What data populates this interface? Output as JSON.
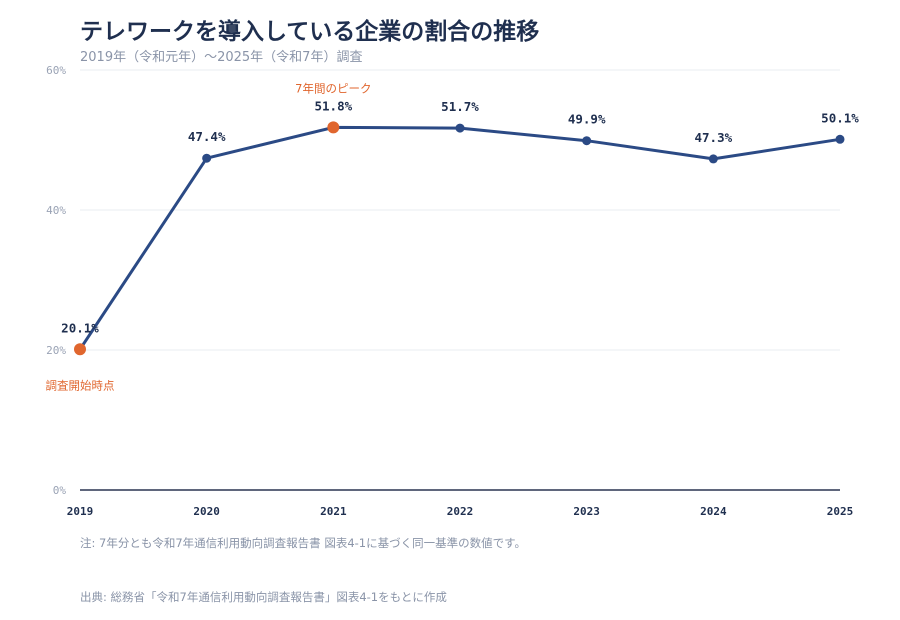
{
  "header": {
    "title": "テレワークを導入している企業の割合の推移",
    "subtitle": "2019年（令和元年）〜2025年（令和7年）調査"
  },
  "footer": {
    "note": "注: 7年分とも令和7年通信利用動向調査報告書 図表4-1に基づく同一基準の数値です。",
    "source": "出典: 総務省「令和7年通信利用動向調査報告書」図表4-1をもとに作成"
  },
  "colors": {
    "line": "#2b4a85",
    "highlight": "#e0662e",
    "axis": "#2a3350",
    "grid": "#e9ecf2"
  },
  "chart_data": {
    "type": "line",
    "title": "テレワークを導入している企業の割合の推移",
    "subtitle": "2019年（令和元年）〜2025年（令和7年）調査",
    "xlabel": "",
    "ylabel": "",
    "ylim": [
      0,
      60
    ],
    "yticks": [
      0,
      20,
      40,
      60
    ],
    "ytick_labels": [
      "0%",
      "20%",
      "40%",
      "60%"
    ],
    "grid": true,
    "x": [
      "2019",
      "2020",
      "2021",
      "2022",
      "2023",
      "2024",
      "2025"
    ],
    "series": [
      {
        "values": [
          20.1,
          47.4,
          51.8,
          51.7,
          49.9,
          47.3,
          50.1
        ],
        "labels": [
          "20.1%",
          "47.4%",
          "51.8%",
          "51.7%",
          "49.9%",
          "47.3%",
          "50.1%"
        ]
      }
    ],
    "highlights": [
      0,
      2
    ],
    "annotations": [
      {
        "index": 0,
        "text": "調査開始時点",
        "position": "below"
      },
      {
        "index": 2,
        "text": "7年間のピーク",
        "position": "above"
      }
    ]
  }
}
